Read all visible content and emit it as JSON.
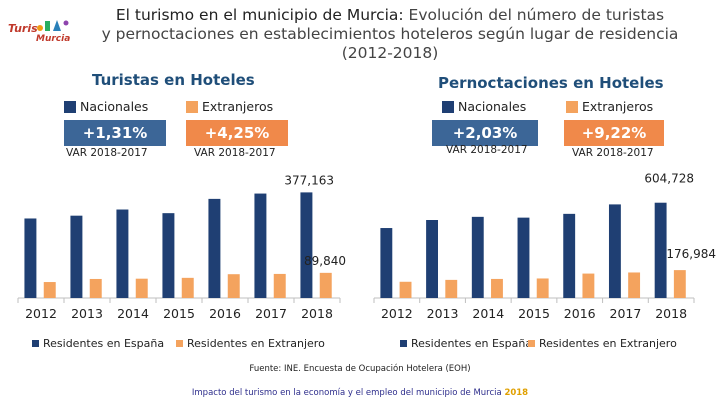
{
  "logo": {
    "text": "Turismo Murcia",
    "colors": [
      "#c0392b",
      "#f39c12",
      "#27ae60",
      "#2980b9"
    ]
  },
  "header": {
    "title_main": "El turismo en el municipio de Murcia:",
    "title_sub": " Evolución del número de turistas",
    "title_line2": "y pernoctaciones en establecimientos hoteleros según lugar de residencia",
    "title_line3": "(2012-2018)"
  },
  "left": {
    "heading": "Turistas en Hoteles",
    "legend_nac": "Nacionales",
    "legend_ext": "Extranjeros",
    "var_nac": "+1,31%",
    "var_ext": "+4,25%",
    "var_label": "VAR 2018-2017"
  },
  "right": {
    "heading": "Pernoctaciones en Hoteles",
    "legend_nac": "Nacionales",
    "legend_ext": "Extranjeros",
    "var_nac": "+2,03%",
    "var_ext": "+9,22%",
    "var_label": "VAR 2018-2017"
  },
  "colors": {
    "spain": "#1f3f73",
    "foreign": "#f4a35e",
    "heading": "#1f4e79"
  },
  "chart_data": [
    {
      "type": "bar",
      "title": "Turistas en Hoteles",
      "categories": [
        "2012",
        "2013",
        "2014",
        "2015",
        "2016",
        "2017",
        "2018"
      ],
      "series": [
        {
          "name": "Residentes en España",
          "values": [
            284000,
            294000,
            316000,
            303000,
            354000,
            373000,
            377163
          ]
        },
        {
          "name": "Residentes en Extranjero",
          "values": [
            57000,
            68000,
            69000,
            72000,
            85000,
            86000,
            89840
          ]
        }
      ],
      "ylim": [
        0,
        400000
      ],
      "data_labels": {
        "spain_last": "377,163",
        "foreign_last": "89,840"
      }
    },
    {
      "type": "bar",
      "title": "Pernoctaciones en Hoteles",
      "categories": [
        "2012",
        "2013",
        "2014",
        "2015",
        "2016",
        "2017",
        "2018"
      ],
      "series": [
        {
          "name": "Residentes en España",
          "values": [
            444000,
            495000,
            515000,
            510000,
            534000,
            594000,
            604728
          ]
        },
        {
          "name": "Residentes en Extranjero",
          "values": [
            103000,
            115000,
            121000,
            124000,
            155000,
            162000,
            176984
          ]
        }
      ],
      "ylim": [
        0,
        660000
      ],
      "data_labels": {
        "spain_last": "604,728",
        "foreign_last": "176,984"
      }
    }
  ],
  "source": "Fuente: INE. Encuesta de Ocupación Hotelera (EOH)",
  "footer": {
    "text": "Impacto del turismo en la economía y el empleo del municipio de Murcia ",
    "year": "2018"
  }
}
